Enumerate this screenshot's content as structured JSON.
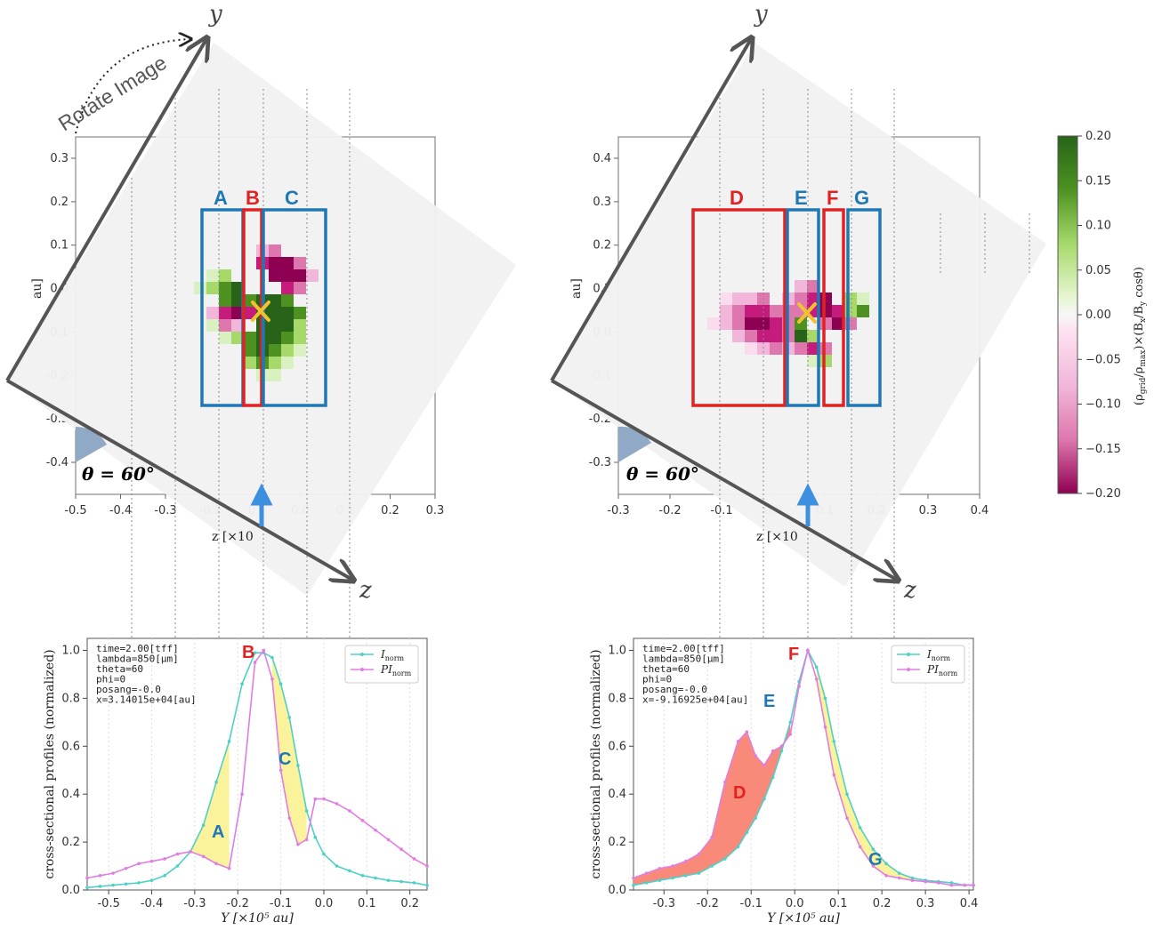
{
  "colors": {
    "I_line": "#4fd0c6",
    "PI_line": "#e07ee0",
    "fill_yellow": "#faf39b",
    "fill_red": "#f98a7a",
    "box_blue": "#1f77b4",
    "box_red": "#e02222",
    "marker": "#f2c12e",
    "axis_arrow": "#555555",
    "arrow_blue": "#3d8fe0"
  },
  "axis_names": {
    "y": "y",
    "z": "z"
  },
  "rotate_label": "Rotate Image",
  "theta_label": "θ = 60°",
  "colorbar": {
    "label": "(ρgrid/ρmax)×(Bx/By cosθ)",
    "ticks": [
      "0.20",
      "0.15",
      "0.10",
      "0.05",
      "0.00",
      "−0.05",
      "−0.10",
      "−0.15",
      "−0.20"
    ],
    "range": [
      -0.2,
      0.2
    ],
    "colormap": "PiYG"
  },
  "chart_data": [
    {
      "type": "heatmap",
      "panel": "left-map",
      "xlabel": "z [×10",
      "ylabel": "au]",
      "xticks": [
        "-0.5",
        "-0.4",
        "-0.3",
        "-0.2",
        "-0.1",
        "0.0",
        "0.1",
        "0.2",
        "0.3"
      ],
      "yticks": [
        "0.3",
        "0.2",
        "0.1",
        "0.0",
        "-0.1",
        "-0.2",
        "-0.3",
        "-0.4"
      ],
      "xlim": [
        -0.5,
        0.3
      ],
      "ylim": [
        -0.4,
        0.3
      ],
      "rotation_deg": 60,
      "boxes": [
        {
          "label": "A",
          "color": "blue"
        },
        {
          "label": "B",
          "color": "red"
        },
        {
          "label": "C",
          "color": "blue"
        }
      ]
    },
    {
      "type": "heatmap",
      "panel": "right-map",
      "xlabel": "z [×10",
      "ylabel": "au]",
      "xticks": [
        "-0.3",
        "-0.2",
        "-0.1",
        "0.0",
        "0.1",
        "0.2",
        "0.3",
        "0.4"
      ],
      "yticks": [
        "0.4",
        "0.3",
        "0.2",
        "0.1",
        "0.0",
        "-0.1",
        "-0.2",
        "-0.3"
      ],
      "xlim": [
        -0.3,
        0.4
      ],
      "ylim": [
        -0.3,
        0.4
      ],
      "rotation_deg": 60,
      "boxes": [
        {
          "label": "D",
          "color": "red"
        },
        {
          "label": "E",
          "color": "blue"
        },
        {
          "label": "F",
          "color": "red"
        },
        {
          "label": "G",
          "color": "blue"
        }
      ]
    },
    {
      "type": "line",
      "panel": "left-profile",
      "xlabel": "Y [×10⁵ au]",
      "ylabel": "cross-sectional profiles (normalized)",
      "xlim": [
        -0.55,
        0.24
      ],
      "ylim": [
        0,
        1.05
      ],
      "xticks": [
        "-0.5",
        "-0.4",
        "-0.3",
        "-0.2",
        "-0.1",
        "0.0",
        "0.1",
        "0.2"
      ],
      "yticks": [
        "0.0",
        "0.2",
        "0.4",
        "0.6",
        "0.8",
        "1.0"
      ],
      "info": [
        "time=2.00[tff]",
        "lambda=850[μm]",
        "theta=60",
        "phi=0",
        "posang=-0.0",
        "x=3.14015e+04[au]"
      ],
      "legend": [
        "I_norm",
        "PI_norm"
      ],
      "legend_position": "top-right",
      "x": [
        -0.55,
        -0.52,
        -0.49,
        -0.46,
        -0.43,
        -0.4,
        -0.37,
        -0.34,
        -0.31,
        -0.28,
        -0.25,
        -0.22,
        -0.19,
        -0.16,
        -0.14,
        -0.12,
        -0.1,
        -0.08,
        -0.06,
        -0.04,
        -0.02,
        0.0,
        0.03,
        0.06,
        0.09,
        0.12,
        0.15,
        0.18,
        0.21,
        0.24
      ],
      "series": [
        {
          "name": "I_norm",
          "values": [
            0.01,
            0.015,
            0.02,
            0.025,
            0.03,
            0.04,
            0.06,
            0.1,
            0.16,
            0.27,
            0.45,
            0.62,
            0.86,
            0.99,
            0.99,
            0.97,
            0.86,
            0.72,
            0.52,
            0.33,
            0.22,
            0.15,
            0.1,
            0.08,
            0.06,
            0.05,
            0.04,
            0.035,
            0.03,
            0.02
          ]
        },
        {
          "name": "PI_norm",
          "values": [
            0.05,
            0.06,
            0.07,
            0.09,
            0.11,
            0.12,
            0.13,
            0.15,
            0.16,
            0.14,
            0.11,
            0.09,
            0.4,
            0.95,
            1.0,
            0.88,
            0.5,
            0.3,
            0.19,
            0.21,
            0.38,
            0.38,
            0.36,
            0.33,
            0.29,
            0.25,
            0.21,
            0.17,
            0.13,
            0.1
          ]
        }
      ],
      "annotations": [
        "A",
        "B",
        "C"
      ]
    },
    {
      "type": "line",
      "panel": "right-profile",
      "xlabel": "Y [×10⁵ au]",
      "ylabel": "cross-sectional profiles (normalized)",
      "xlim": [
        -0.37,
        0.41
      ],
      "ylim": [
        0,
        1.05
      ],
      "xticks": [
        "-0.3",
        "-0.2",
        "-0.1",
        "0.0",
        "0.1",
        "0.2",
        "0.3",
        "0.4"
      ],
      "yticks": [
        "0.0",
        "0.2",
        "0.4",
        "0.6",
        "0.8",
        "1.0"
      ],
      "info": [
        "time=2.00[tff]",
        "lambda=850[μm]",
        "theta=60",
        "phi=0",
        "posang=-0.0",
        "x=-9.16925e+04[au]"
      ],
      "legend": [
        "I_norm",
        "PI_norm"
      ],
      "legend_position": "top-right",
      "x": [
        -0.37,
        -0.34,
        -0.31,
        -0.28,
        -0.25,
        -0.22,
        -0.19,
        -0.16,
        -0.13,
        -0.11,
        -0.09,
        -0.07,
        -0.05,
        -0.03,
        -0.01,
        0.01,
        0.03,
        0.05,
        0.07,
        0.09,
        0.12,
        0.15,
        0.18,
        0.21,
        0.24,
        0.27,
        0.3,
        0.33,
        0.36,
        0.39,
        0.41
      ],
      "series": [
        {
          "name": "I_norm",
          "values": [
            0.02,
            0.03,
            0.04,
            0.05,
            0.06,
            0.07,
            0.1,
            0.13,
            0.18,
            0.24,
            0.3,
            0.38,
            0.47,
            0.58,
            0.7,
            0.87,
            1.0,
            0.93,
            0.8,
            0.62,
            0.4,
            0.26,
            0.17,
            0.11,
            0.07,
            0.05,
            0.04,
            0.035,
            0.03,
            0.02,
            0.02
          ]
        },
        {
          "name": "PI_norm",
          "values": [
            0.05,
            0.07,
            0.09,
            0.1,
            0.12,
            0.15,
            0.22,
            0.45,
            0.62,
            0.66,
            0.56,
            0.52,
            0.58,
            0.6,
            0.65,
            0.85,
            1.0,
            0.88,
            0.68,
            0.48,
            0.3,
            0.18,
            0.1,
            0.06,
            0.05,
            0.04,
            0.035,
            0.03,
            0.02,
            0.02,
            0.02
          ]
        }
      ],
      "annotations": [
        "D",
        "E",
        "F",
        "G"
      ]
    }
  ]
}
